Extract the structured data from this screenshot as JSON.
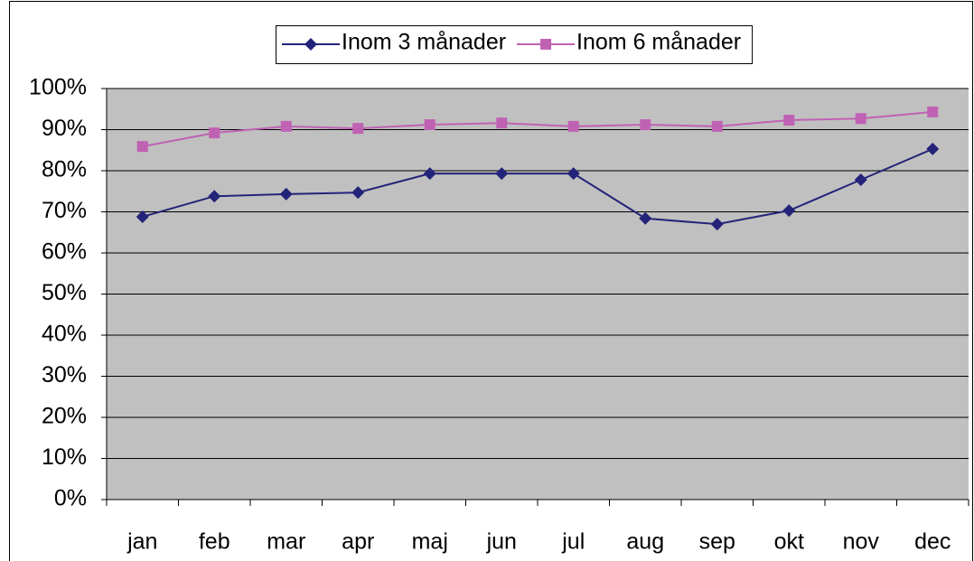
{
  "chart_data": {
    "type": "line",
    "categories": [
      "jan",
      "feb",
      "mar",
      "apr",
      "maj",
      "jun",
      "jul",
      "aug",
      "sep",
      "okt",
      "nov",
      "dec"
    ],
    "series": [
      {
        "name": "Inom 3 månader",
        "color": "#24237a",
        "marker": "diamond",
        "values": [
          68.8,
          73.8,
          74.3,
          74.7,
          79.3,
          79.3,
          79.3,
          68.4,
          67.0,
          70.3,
          77.8,
          85.3
        ]
      },
      {
        "name": "Inom 6 månader",
        "color": "#c062b4",
        "marker": "square",
        "values": [
          85.9,
          89.2,
          90.8,
          90.3,
          91.2,
          91.6,
          90.8,
          91.2,
          90.8,
          92.3,
          92.7,
          94.3
        ]
      }
    ],
    "ylim": [
      0,
      100
    ],
    "yticks": [
      {
        "value": 0,
        "label": "0%"
      },
      {
        "value": 10,
        "label": "10%"
      },
      {
        "value": 20,
        "label": "20%"
      },
      {
        "value": 30,
        "label": "30%"
      },
      {
        "value": 40,
        "label": "40%"
      },
      {
        "value": 50,
        "label": "50%"
      },
      {
        "value": 60,
        "label": "60%"
      },
      {
        "value": 70,
        "label": "70%"
      },
      {
        "value": 80,
        "label": "80%"
      },
      {
        "value": 90,
        "label": "90%"
      },
      {
        "value": 100,
        "label": "100%"
      }
    ],
    "grid": true,
    "legend": "top"
  }
}
